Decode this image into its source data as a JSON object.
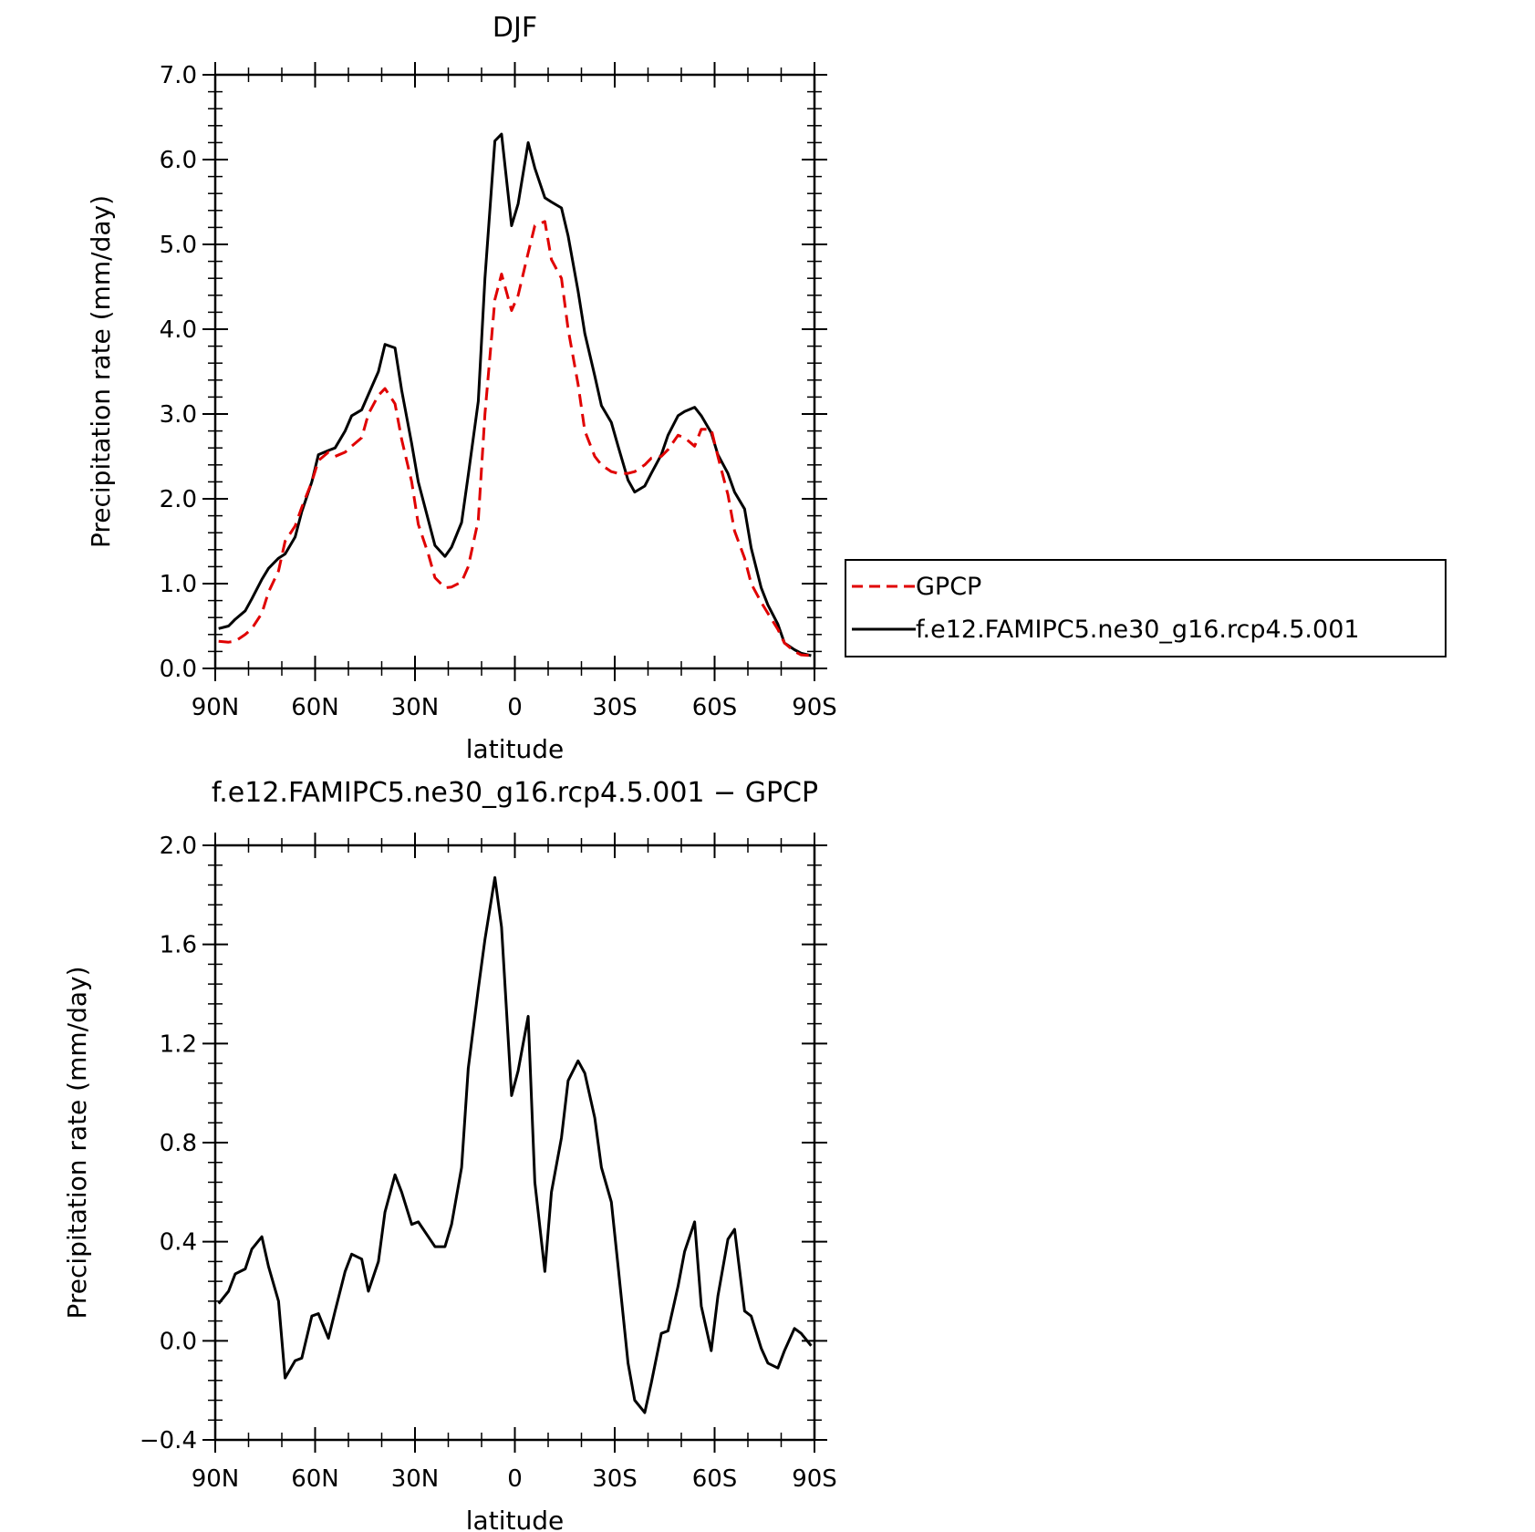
{
  "chart_data": [
    {
      "type": "line",
      "title": "DJF",
      "xlabel": "latitude",
      "ylabel": "Precipitation rate (mm/day)",
      "xlim": [
        90,
        -90
      ],
      "ylim": [
        0,
        7
      ],
      "x_ticks": [
        90,
        60,
        30,
        0,
        -30,
        -60,
        -90
      ],
      "x_tick_labels": [
        "90N",
        "60N",
        "30N",
        "0",
        "30S",
        "60S",
        "90S"
      ],
      "y_ticks": [
        0,
        1,
        2,
        3,
        4,
        5,
        6,
        7
      ],
      "y_tick_labels": [
        "0.0",
        "1.0",
        "2.0",
        "3.0",
        "4.0",
        "5.0",
        "6.0",
        "7.0"
      ],
      "legend_position": "right",
      "series": [
        {
          "name": "GPCP",
          "color": "#e00000",
          "style": "dashed",
          "x": [
            89,
            86,
            84,
            81,
            79,
            76,
            74,
            71,
            69,
            66,
            64,
            61,
            59,
            56,
            54,
            51,
            49,
            46,
            44,
            41,
            39,
            36,
            34,
            31,
            29,
            26,
            24,
            21,
            19,
            16,
            14,
            11,
            9,
            6,
            4,
            1,
            -1,
            -4,
            -6,
            -9,
            -11,
            -14,
            -16,
            -19,
            -21,
            -24,
            -26,
            -29,
            -31,
            -34,
            -36,
            -39,
            -41,
            -44,
            -46,
            -49,
            -51,
            -54,
            -56,
            -59,
            -61,
            -64,
            -66,
            -69,
            -71,
            -74,
            -76,
            -79,
            -81,
            -84,
            -86,
            -89
          ],
          "y": [
            0.32,
            0.31,
            0.32,
            0.4,
            0.47,
            0.65,
            0.9,
            1.15,
            1.5,
            1.68,
            1.9,
            2.2,
            2.45,
            2.55,
            2.5,
            2.55,
            2.62,
            2.72,
            3.0,
            3.22,
            3.3,
            3.12,
            2.7,
            2.2,
            1.7,
            1.35,
            1.07,
            0.95,
            0.96,
            1.02,
            1.2,
            1.75,
            3.0,
            4.35,
            4.65,
            4.22,
            4.4,
            4.9,
            5.22,
            5.27,
            4.82,
            4.6,
            4.0,
            3.35,
            2.8,
            2.5,
            2.4,
            2.32,
            2.3,
            2.3,
            2.32,
            2.4,
            2.48,
            2.5,
            2.58,
            2.75,
            2.72,
            2.62,
            2.82,
            2.82,
            2.5,
            2.05,
            1.62,
            1.3,
            1.0,
            0.78,
            0.65,
            0.46,
            0.3,
            0.2,
            0.16,
            0.15
          ]
        },
        {
          "name": "f.e12.FAMIPC5.ne30_g16.rcp4.5.001",
          "color": "#000000",
          "style": "solid",
          "x": [
            89,
            86,
            84,
            81,
            79,
            76,
            74,
            71,
            69,
            66,
            64,
            61,
            59,
            56,
            54,
            51,
            49,
            46,
            44,
            41,
            39,
            36,
            34,
            31,
            29,
            26,
            24,
            21,
            19,
            16,
            14,
            11,
            9,
            6,
            4,
            1,
            -1,
            -4,
            -6,
            -9,
            -11,
            -14,
            -16,
            -19,
            -21,
            -24,
            -26,
            -29,
            -31,
            -34,
            -36,
            -39,
            -41,
            -44,
            -46,
            -49,
            -51,
            -54,
            -56,
            -59,
            -61,
            -64,
            -66,
            -69,
            -71,
            -74,
            -76,
            -79,
            -81,
            -84,
            -86,
            -89
          ],
          "y": [
            0.47,
            0.5,
            0.58,
            0.68,
            0.82,
            1.05,
            1.18,
            1.3,
            1.35,
            1.55,
            1.85,
            2.2,
            2.52,
            2.57,
            2.6,
            2.8,
            2.98,
            3.05,
            3.23,
            3.5,
            3.82,
            3.78,
            3.28,
            2.65,
            2.2,
            1.75,
            1.45,
            1.32,
            1.43,
            1.72,
            2.28,
            3.15,
            4.6,
            6.22,
            6.3,
            5.22,
            5.48,
            6.2,
            5.9,
            5.55,
            5.5,
            5.43,
            5.1,
            4.45,
            3.95,
            3.45,
            3.1,
            2.9,
            2.62,
            2.22,
            2.08,
            2.15,
            2.3,
            2.52,
            2.75,
            2.98,
            3.03,
            3.08,
            2.98,
            2.78,
            2.52,
            2.3,
            2.08,
            1.88,
            1.42,
            0.95,
            0.75,
            0.52,
            0.3,
            0.22,
            0.18,
            0.15
          ]
        }
      ]
    },
    {
      "type": "line",
      "title": "f.e12.FAMIPC5.ne30_g16.rcp4.5.001 − GPCP",
      "xlabel": "latitude",
      "ylabel": "Precipitation rate (mm/day)",
      "xlim": [
        90,
        -90
      ],
      "ylim": [
        -0.4,
        2.0
      ],
      "x_ticks": [
        90,
        60,
        30,
        0,
        -30,
        -60,
        -90
      ],
      "x_tick_labels": [
        "90N",
        "60N",
        "30N",
        "0",
        "30S",
        "60S",
        "90S"
      ],
      "y_ticks": [
        -0.4,
        0,
        0.4,
        0.8,
        1.2,
        1.6,
        2.0
      ],
      "y_tick_labels": [
        "−0.4",
        "0.0",
        "0.4",
        "0.8",
        "1.2",
        "1.6",
        "2.0"
      ],
      "series": [
        {
          "color": "#000000",
          "style": "solid",
          "x": [
            89,
            86,
            84,
            81,
            79,
            76,
            74,
            71,
            69,
            66,
            64,
            61,
            59,
            56,
            54,
            51,
            49,
            46,
            44,
            41,
            39,
            36,
            34,
            31,
            29,
            26,
            24,
            21,
            19,
            16,
            14,
            11,
            9,
            6,
            4,
            1,
            -1,
            -4,
            -6,
            -9,
            -11,
            -14,
            -16,
            -19,
            -21,
            -24,
            -26,
            -29,
            -31,
            -34,
            -36,
            -39,
            -41,
            -44,
            -46,
            -49,
            -51,
            -54,
            -56,
            -59,
            -61,
            -64,
            -66,
            -69,
            -71,
            -74,
            -76,
            -79,
            -81,
            -84,
            -86,
            -89
          ],
          "y": [
            0.15,
            0.2,
            0.27,
            0.29,
            0.37,
            0.42,
            0.3,
            0.16,
            -0.15,
            -0.08,
            -0.07,
            0.1,
            0.11,
            0.01,
            0.12,
            0.28,
            0.35,
            0.33,
            0.2,
            0.32,
            0.52,
            0.67,
            0.6,
            0.47,
            0.48,
            0.42,
            0.38,
            0.38,
            0.47,
            0.7,
            1.1,
            1.42,
            1.62,
            1.87,
            1.67,
            0.99,
            1.09,
            1.31,
            0.64,
            0.28,
            0.6,
            0.82,
            1.05,
            1.13,
            1.08,
            0.9,
            0.7,
            0.56,
            0.3,
            -0.09,
            -0.24,
            -0.29,
            -0.17,
            0.03,
            0.04,
            0.22,
            0.36,
            0.48,
            0.14,
            -0.04,
            0.18,
            0.41,
            0.45,
            0.12,
            0.1,
            -0.03,
            -0.09,
            -0.11,
            -0.04,
            0.05,
            0.03,
            -0.02
          ]
        }
      ]
    }
  ]
}
